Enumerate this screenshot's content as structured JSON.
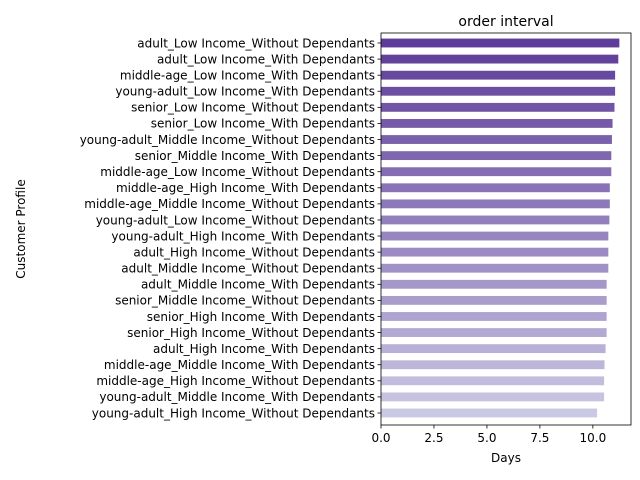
{
  "chart_data": {
    "type": "bar",
    "orientation": "horizontal",
    "title": "order interval",
    "xlabel": "Days",
    "ylabel": "Customer Profile",
    "xlim": [
      0,
      11.8
    ],
    "xticks": [
      "0.0",
      "2.5",
      "5.0",
      "7.5",
      "10.0"
    ],
    "xtick_values": [
      0,
      2.5,
      5,
      7.5,
      10
    ],
    "grid": false,
    "legend": "none",
    "colormap": "purples",
    "color_dark": "#5e3c99",
    "color_light": "#cbc8e3",
    "categories": [
      "adult_Low Income_Without Dependants",
      "adult_Low Income_With Dependants",
      "middle-age_Low Income_With Dependants",
      "young-adult_Low Income_With Dependants",
      "senior_Low Income_Without Dependants",
      "senior_Low Income_With Dependants",
      "young-adult_Middle Income_Without Dependants",
      "senior_Middle Income_With Dependants",
      "middle-age_Low Income_Without Dependants",
      "middle-age_High Income_With Dependants",
      "middle-age_Middle Income_Without Dependants",
      "young-adult_Low Income_Without Dependants",
      "young-adult_High Income_With Dependants",
      "adult_High Income_Without Dependants",
      "adult_Middle Income_Without Dependants",
      "adult_Middle Income_With Dependants",
      "senior_Middle Income_Without Dependants",
      "senior_High Income_With Dependants",
      "senior_High Income_Without Dependants",
      "adult_High Income_With Dependants",
      "middle-age_Middle Income_With Dependants",
      "middle-age_High Income_Without Dependants",
      "young-adult_Middle Income_With Dependants",
      "young-adult_High Income_Without Dependants"
    ],
    "values": [
      11.25,
      11.2,
      11.05,
      11.05,
      11.02,
      10.93,
      10.9,
      10.87,
      10.87,
      10.8,
      10.8,
      10.78,
      10.73,
      10.73,
      10.73,
      10.65,
      10.65,
      10.65,
      10.65,
      10.6,
      10.55,
      10.53,
      10.53,
      10.2
    ]
  }
}
